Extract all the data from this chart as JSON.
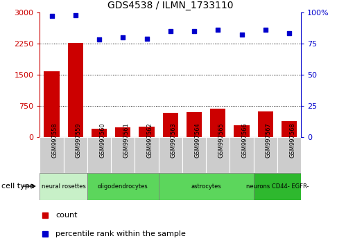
{
  "title": "GDS4538 / ILMN_1733110",
  "samples": [
    "GSM997558",
    "GSM997559",
    "GSM997560",
    "GSM997561",
    "GSM997562",
    "GSM997563",
    "GSM997564",
    "GSM997565",
    "GSM997566",
    "GSM997567",
    "GSM997568"
  ],
  "counts": [
    1580,
    2260,
    200,
    230,
    250,
    590,
    610,
    680,
    290,
    620,
    380
  ],
  "percentiles": [
    97,
    97.5,
    78,
    80,
    79,
    85,
    85,
    86,
    82,
    86,
    83
  ],
  "ylim_left": [
    0,
    3000
  ],
  "ylim_right": [
    0,
    100
  ],
  "yticks_left": [
    0,
    750,
    1500,
    2250,
    3000
  ],
  "yticks_right": [
    0,
    25,
    50,
    75,
    100
  ],
  "cell_types": [
    {
      "label": "neural rosettes",
      "start": 0,
      "end": 2,
      "color": "#c8f0c8"
    },
    {
      "label": "oligodendrocytes",
      "start": 2,
      "end": 5,
      "color": "#5cd65c"
    },
    {
      "label": "astrocytes",
      "start": 5,
      "end": 9,
      "color": "#5cd65c"
    },
    {
      "label": "neurons CD44- EGFR-",
      "start": 9,
      "end": 11,
      "color": "#2eb82e"
    }
  ],
  "bar_color": "#cc0000",
  "scatter_color": "#0000cc",
  "background_color": "#ffffff",
  "grid_color": "#000000",
  "tick_label_color_left": "#cc0000",
  "tick_label_color_right": "#0000cc",
  "cell_type_label": "cell type",
  "legend_count_label": "count",
  "legend_pct_label": "percentile rank within the sample",
  "sample_box_color": "#cccccc"
}
